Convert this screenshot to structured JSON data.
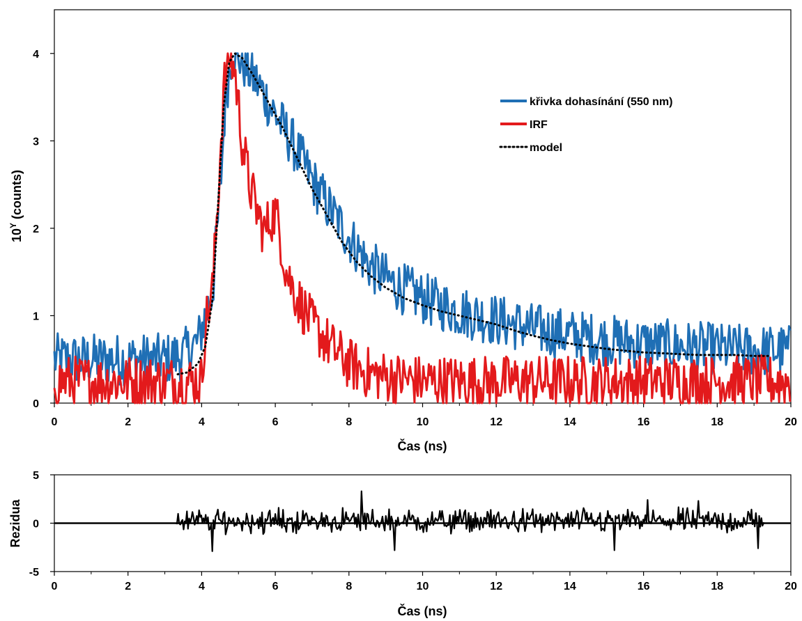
{
  "chart_data": [
    {
      "type": "line",
      "xlabel": "Čas (ns)",
      "ylabel_base": "10",
      "ylabel_sup": "Y",
      "ylabel_rest": " (counts)",
      "xlim": [
        0,
        20
      ],
      "ylim": [
        0,
        4.5
      ],
      "x_ticks": [
        "0",
        "2",
        "4",
        "6",
        "8",
        "10",
        "12",
        "14",
        "16",
        "18",
        "20"
      ],
      "y_ticks": [
        "0",
        "1",
        "2",
        "3",
        "4"
      ],
      "legend_position": "top-right",
      "series": [
        {
          "name": "křivka dohasínání (550 nm)",
          "color": "#1f6fb5",
          "style": "solid",
          "trend": {
            "x": [
              0,
              1,
              2,
              3,
              3.5,
              3.9,
              4.1,
              4.3,
              4.5,
              4.65,
              4.8,
              4.95,
              5.2,
              5.6,
              6.0,
              6.5,
              7.0,
              7.5,
              8.0,
              8.5,
              9.0,
              9.5,
              10,
              10.5,
              11,
              11.5,
              12,
              12.5,
              13,
              14,
              15,
              16,
              17,
              18,
              19,
              20
            ],
            "y": [
              0.5,
              0.5,
              0.5,
              0.5,
              0.55,
              0.7,
              1.0,
              1.3,
              2.4,
              3.5,
              3.95,
              4.0,
              3.85,
              3.6,
              3.3,
              2.95,
              2.55,
              2.2,
              1.9,
              1.6,
              1.42,
              1.3,
              1.2,
              1.12,
              1.05,
              1.0,
              0.95,
              0.9,
              0.85,
              0.78,
              0.72,
              0.68,
              0.65,
              0.62,
              0.6,
              0.6
            ]
          },
          "noise_amplitude": 0.3
        },
        {
          "name": "IRF",
          "color": "#e31a1c",
          "style": "solid",
          "trend": {
            "x": [
              0,
              1,
              2,
              3,
              4.0,
              4.1,
              4.3,
              4.45,
              4.6,
              4.75,
              4.9,
              5.1,
              5.3,
              5.5,
              5.7,
              5.85,
              6.0,
              6.1,
              6.3,
              6.6,
              7.0,
              7.5,
              8.0,
              8.5,
              9,
              10,
              12,
              14,
              16,
              18,
              20
            ],
            "y": [
              0.25,
              0.25,
              0.25,
              0.25,
              0.25,
              0.9,
              1.3,
              2.4,
              3.6,
              4.0,
              3.8,
              3.0,
              2.5,
              2.2,
              1.95,
              2.1,
              2.18,
              2.0,
              1.5,
              1.2,
              0.9,
              0.65,
              0.45,
              0.35,
              0.3,
              0.25,
              0.25,
              0.25,
              0.25,
              0.25,
              0.25
            ]
          },
          "noise_amplitude": 0.3
        },
        {
          "name": "model",
          "color": "#000000",
          "style": "dotted",
          "x": [
            3.35,
            3.6,
            3.9,
            4.1,
            4.3,
            4.45,
            4.6,
            4.75,
            4.9,
            5.1,
            5.4,
            5.8,
            6.2,
            6.6,
            7.0,
            7.4,
            7.8,
            8.2,
            8.6,
            9.0,
            9.5,
            10,
            10.5,
            11,
            11.5,
            12,
            12.5,
            13,
            13.5,
            14,
            14.5,
            15,
            15.5,
            16,
            16.5,
            17,
            17.5,
            18,
            18.5,
            19,
            19.4
          ],
          "y": [
            0.33,
            0.35,
            0.45,
            0.65,
            1.2,
            2.3,
            3.4,
            3.9,
            4.0,
            3.95,
            3.75,
            3.45,
            3.15,
            2.8,
            2.45,
            2.15,
            1.85,
            1.62,
            1.45,
            1.32,
            1.2,
            1.12,
            1.05,
            1.0,
            0.95,
            0.9,
            0.83,
            0.77,
            0.72,
            0.68,
            0.65,
            0.62,
            0.6,
            0.58,
            0.57,
            0.56,
            0.55,
            0.55,
            0.55,
            0.54,
            0.54
          ]
        }
      ]
    },
    {
      "type": "line",
      "xlabel": "Čas (ns)",
      "ylabel": "Rezidua",
      "xlim": [
        0,
        20
      ],
      "ylim": [
        -5,
        5
      ],
      "x_ticks": [
        "0",
        "2",
        "4",
        "6",
        "8",
        "10",
        "12",
        "14",
        "16",
        "18",
        "20"
      ],
      "y_ticks": [
        "5",
        "0",
        "-5"
      ],
      "series": [
        {
          "name": "rezidua",
          "color": "#000000",
          "style": "solid",
          "x_range": [
            3.3,
            19.3
          ],
          "mean": 0.2,
          "noise_amplitude": 1.2,
          "highlights": [
            {
              "x": 8.35,
              "y": 3.3
            },
            {
              "x": 4.3,
              "y": -2.9
            },
            {
              "x": 9.25,
              "y": -2.8
            },
            {
              "x": 15.2,
              "y": -2.8
            },
            {
              "x": 19.1,
              "y": -2.6
            },
            {
              "x": 16.1,
              "y": 2.4
            },
            {
              "x": 17.5,
              "y": 2.3
            }
          ]
        }
      ]
    }
  ]
}
